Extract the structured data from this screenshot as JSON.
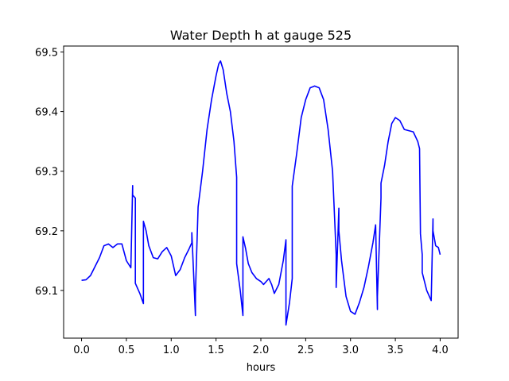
{
  "chart_data": {
    "type": "line",
    "title": "Water Depth h at gauge 525",
    "xlabel": "hours",
    "ylabel": "",
    "xlim": [
      -0.2,
      4.2
    ],
    "ylim": [
      69.02,
      69.51
    ],
    "grid": false,
    "x_ticks": [
      0.0,
      0.5,
      1.0,
      1.5,
      2.0,
      2.5,
      3.0,
      3.5,
      4.0
    ],
    "x_tick_labels": [
      "0.0",
      "0.5",
      "1.0",
      "1.5",
      "2.0",
      "2.5",
      "3.0",
      "3.5",
      "4.0"
    ],
    "y_ticks": [
      69.1,
      69.2,
      69.3,
      69.4,
      69.5
    ],
    "y_tick_labels": [
      "69.1",
      "69.2",
      "69.3",
      "69.4",
      "69.5"
    ],
    "series_color": "#0000ff",
    "series": [
      {
        "name": "",
        "x": [
          0.0,
          0.05,
          0.1,
          0.15,
          0.2,
          0.25,
          0.3,
          0.35,
          0.4,
          0.45,
          0.5,
          0.55,
          0.57,
          0.57,
          0.6,
          0.6,
          0.65,
          0.69,
          0.69,
          0.72,
          0.75,
          0.8,
          0.85,
          0.9,
          0.95,
          1.0,
          1.05,
          1.1,
          1.15,
          1.2,
          1.23,
          1.23,
          1.27,
          1.27,
          1.3,
          1.35,
          1.4,
          1.45,
          1.5,
          1.53,
          1.55,
          1.58,
          1.62,
          1.66,
          1.7,
          1.73,
          1.73,
          1.77,
          1.8,
          1.8,
          1.83,
          1.86,
          1.9,
          1.95,
          2.0,
          2.03,
          2.06,
          2.09,
          2.12,
          2.15,
          2.2,
          2.25,
          2.28,
          2.28,
          2.32,
          2.35,
          2.35,
          2.4,
          2.45,
          2.5,
          2.55,
          2.6,
          2.65,
          2.7,
          2.75,
          2.8,
          2.84,
          2.84,
          2.87,
          2.87,
          2.9,
          2.95,
          3.0,
          3.05,
          3.1,
          3.15,
          3.2,
          3.25,
          3.28,
          3.3,
          3.3,
          3.34,
          3.34,
          3.38,
          3.42,
          3.46,
          3.5,
          3.55,
          3.6,
          3.65,
          3.7,
          3.75,
          3.77,
          3.78,
          3.8,
          3.8,
          3.85,
          3.9,
          3.92,
          3.92,
          3.95,
          3.98,
          4.0
        ],
        "y": [
          69.117,
          69.118,
          69.125,
          69.14,
          69.155,
          69.175,
          69.178,
          69.172,
          69.178,
          69.178,
          69.15,
          69.138,
          69.276,
          69.26,
          69.255,
          69.112,
          69.095,
          69.078,
          69.216,
          69.2,
          69.175,
          69.155,
          69.153,
          69.165,
          69.172,
          69.158,
          69.125,
          69.135,
          69.155,
          69.17,
          69.18,
          69.197,
          69.058,
          69.095,
          69.24,
          69.3,
          69.37,
          69.42,
          69.46,
          69.48,
          69.485,
          69.47,
          69.43,
          69.4,
          69.35,
          69.29,
          69.145,
          69.1,
          69.058,
          69.19,
          69.17,
          69.145,
          69.13,
          69.12,
          69.115,
          69.11,
          69.115,
          69.12,
          69.11,
          69.095,
          69.11,
          69.15,
          69.185,
          69.042,
          69.08,
          69.12,
          69.275,
          69.33,
          69.39,
          69.42,
          69.44,
          69.443,
          69.44,
          69.42,
          69.37,
          69.3,
          69.16,
          69.105,
          69.238,
          69.2,
          69.15,
          69.09,
          69.065,
          69.06,
          69.08,
          69.105,
          69.14,
          69.18,
          69.21,
          69.068,
          69.09,
          69.255,
          69.28,
          69.31,
          69.35,
          69.38,
          69.39,
          69.385,
          69.37,
          69.368,
          69.366,
          69.35,
          69.338,
          69.195,
          69.16,
          69.13,
          69.1,
          69.083,
          69.22,
          69.2,
          69.175,
          69.172,
          69.16
        ]
      }
    ]
  }
}
